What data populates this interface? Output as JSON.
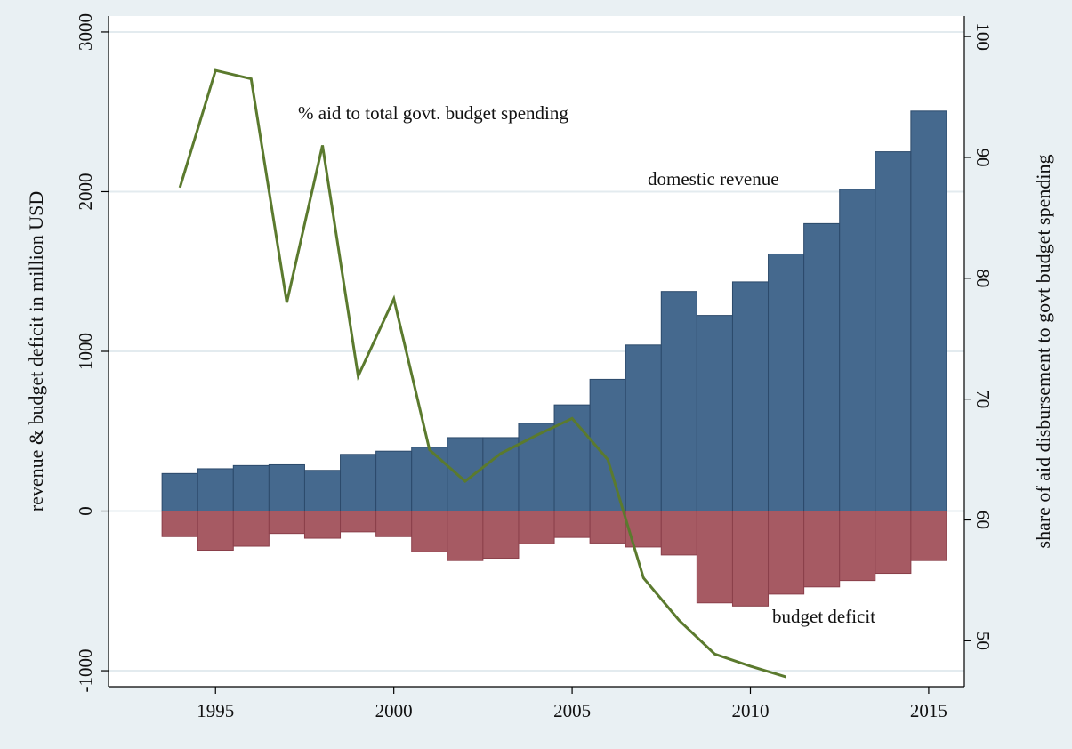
{
  "chart_data": {
    "type": "bar",
    "title": "",
    "years": [
      1994,
      1995,
      1996,
      1997,
      1998,
      1999,
      2000,
      2001,
      2002,
      2003,
      2004,
      2005,
      2006,
      2007,
      2008,
      2009,
      2010,
      2011,
      2012,
      2013,
      2014,
      2015
    ],
    "series": [
      {
        "name": "domestic revenue",
        "type": "bar",
        "axis": "left",
        "color": "#45698e",
        "values": [
          235,
          265,
          285,
          290,
          255,
          355,
          375,
          400,
          460,
          460,
          550,
          665,
          825,
          1040,
          1375,
          1225,
          1435,
          1610,
          1800,
          2015,
          2250,
          2505
        ]
      },
      {
        "name": "budget deficit",
        "type": "bar",
        "axis": "left",
        "color": "#a65a63",
        "values": [
          -160,
          -245,
          -220,
          -140,
          -170,
          -130,
          -160,
          -255,
          -310,
          -295,
          -205,
          -165,
          -200,
          -225,
          -275,
          -575,
          -595,
          -520,
          -475,
          -435,
          -390,
          -310
        ]
      },
      {
        "name": "% aid to total govt. budget spending",
        "type": "line",
        "axis": "right",
        "color": "#5b7a2e",
        "x": [
          1994,
          1995,
          1996,
          1997,
          1998,
          1999,
          2000,
          2001,
          2002,
          2003,
          2004,
          2005,
          2006,
          2007,
          2008,
          2009,
          2010,
          2011
        ],
        "values": [
          87.5,
          97.2,
          96.5,
          78.0,
          91.0,
          71.9,
          78.3,
          65.8,
          63.2,
          65.5,
          67.0,
          68.4,
          65.0,
          55.2,
          51.7,
          48.9,
          47.9,
          47.0
        ]
      }
    ],
    "xlim": [
      1992,
      2016
    ],
    "xticks": [
      "1995",
      "2000",
      "2005",
      "2010",
      "2015"
    ],
    "ylim": [
      -1100,
      3100
    ],
    "yticks": [
      "-1000",
      "0",
      "1000",
      "2000",
      "3000"
    ],
    "ylabel": "revenue & budget deficit in million USD",
    "y2lim": [
      46.2,
      101.7
    ],
    "y2ticks": [
      "50",
      "60",
      "70",
      "80",
      "90",
      "100"
    ],
    "y2label": "share of aid disbursement to govt budget spending",
    "grid": true,
    "annotations": {
      "aid_line": "% aid to total govt. budget spending",
      "revenue": "domestic revenue",
      "deficit": "budget deficit"
    }
  }
}
